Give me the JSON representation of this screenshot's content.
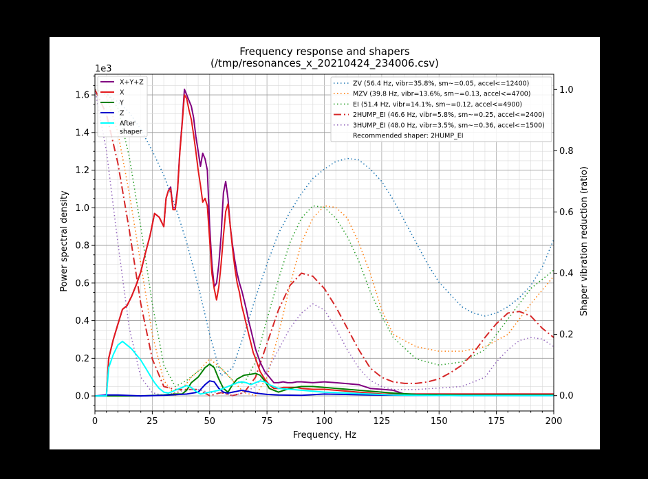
{
  "chart_data": {
    "type": "line",
    "title": "Frequency response and shapers",
    "subtitle": "(/tmp/resonances_x_20210424_234006.csv)",
    "xlabel": "Frequency, Hz",
    "ylabel": "Power spectral density",
    "ylabel_right": "Shaper vibration reduction (ratio)",
    "y_exponent_label": "1e3",
    "xlim": [
      0,
      200
    ],
    "ylim": [
      -80,
      1710
    ],
    "ylim_right": [
      -0.05,
      1.05
    ],
    "x_ticks": [
      0,
      25,
      50,
      75,
      100,
      125,
      150,
      175,
      200
    ],
    "x_tick_labels": [
      "0",
      "25",
      "50",
      "75",
      "100",
      "125",
      "150",
      "175",
      "200"
    ],
    "y_ticks": [
      0,
      200,
      400,
      600,
      800,
      1000,
      1200,
      1400,
      1600
    ],
    "y_tick_labels": [
      "0.0",
      "0.2",
      "0.4",
      "0.6",
      "0.8",
      "1.0",
      "1.2",
      "1.4",
      "1.6"
    ],
    "y_right_ticks": [
      0,
      0.2,
      0.4,
      0.6,
      0.8,
      1.0
    ],
    "y_right_tick_labels": [
      "0.0",
      "0.2",
      "0.4",
      "0.6",
      "0.8",
      "1.0"
    ],
    "grid": true,
    "legend_left_placement": "top-left",
    "legend_right_placement": "top-right",
    "legend_note": "Recommended shaper: 2HUMP_EI",
    "psd_series": [
      {
        "name": "X+Y+Z",
        "color": "#800080",
        "style": "solid",
        "width": 2,
        "x": [
          0,
          5,
          6,
          8,
          10,
          12,
          14,
          16,
          18,
          20,
          22,
          24,
          26,
          28,
          30,
          31,
          32,
          33,
          34,
          35,
          36,
          37,
          38,
          39,
          40,
          41,
          42,
          43,
          44,
          45,
          46,
          47,
          48,
          49,
          50,
          51,
          52,
          53,
          54,
          55,
          56,
          57,
          58,
          59,
          60,
          61,
          62,
          63,
          64,
          65,
          66,
          67,
          68,
          69,
          70,
          72,
          74,
          76,
          78,
          80,
          82,
          84,
          86,
          88,
          90,
          95,
          100,
          105,
          110,
          115,
          120,
          125,
          130,
          135,
          140,
          150,
          160,
          170,
          180,
          190,
          200
        ],
        "y": [
          0,
          0,
          200,
          300,
          380,
          460,
          480,
          530,
          590,
          660,
          760,
          850,
          970,
          950,
          900,
          1050,
          1090,
          1110,
          1000,
          1000,
          1100,
          1300,
          1450,
          1630,
          1600,
          1570,
          1540,
          1480,
          1380,
          1300,
          1220,
          1290,
          1260,
          1200,
          900,
          700,
          580,
          600,
          700,
          850,
          1080,
          1140,
          1050,
          900,
          800,
          720,
          650,
          600,
          560,
          510,
          460,
          400,
          350,
          300,
          250,
          180,
          130,
          100,
          70,
          70,
          75,
          70,
          70,
          75,
          75,
          70,
          75,
          70,
          65,
          60,
          40,
          35,
          30,
          10,
          10,
          10,
          10,
          10,
          10,
          10,
          10
        ]
      },
      {
        "name": "X",
        "color": "#e41a1c",
        "style": "solid",
        "width": 2,
        "x": [
          0,
          5,
          6,
          8,
          10,
          12,
          14,
          16,
          18,
          20,
          22,
          24,
          26,
          28,
          30,
          31,
          32,
          33,
          34,
          35,
          36,
          37,
          38,
          39,
          40,
          41,
          42,
          43,
          44,
          45,
          46,
          47,
          48,
          49,
          50,
          51,
          52,
          53,
          54,
          55,
          56,
          57,
          58,
          59,
          60,
          61,
          62,
          63,
          64,
          65,
          66,
          67,
          68,
          69,
          70,
          72,
          74,
          76,
          78,
          80,
          82,
          84,
          86,
          88,
          90,
          95,
          100,
          105,
          110,
          115,
          120,
          125,
          130,
          135,
          140,
          150,
          160,
          170,
          180,
          190,
          200
        ],
        "y": [
          0,
          0,
          200,
          300,
          380,
          460,
          480,
          530,
          590,
          660,
          760,
          850,
          970,
          950,
          900,
          1050,
          1090,
          1100,
          990,
          990,
          1090,
          1290,
          1440,
          1600,
          1580,
          1520,
          1470,
          1390,
          1300,
          1200,
          1120,
          1030,
          1050,
          1010,
          830,
          650,
          570,
          510,
          580,
          700,
          850,
          980,
          1020,
          900,
          780,
          680,
          600,
          550,
          480,
          430,
          380,
          330,
          280,
          230,
          200,
          130,
          90,
          60,
          40,
          40,
          45,
          45,
          45,
          45,
          40,
          35,
          35,
          30,
          25,
          20,
          15,
          10,
          10,
          10,
          10,
          10,
          10,
          10,
          10,
          10,
          10
        ]
      },
      {
        "name": "Y",
        "color": "#008000",
        "style": "solid",
        "width": 2,
        "x": [
          0,
          5,
          10,
          20,
          30,
          35,
          38,
          40,
          42,
          45,
          48,
          50,
          52,
          54,
          56,
          58,
          60,
          62,
          65,
          68,
          70,
          72,
          74,
          76,
          78,
          80,
          85,
          90,
          95,
          100,
          110,
          120,
          130,
          140,
          160,
          180,
          200
        ],
        "y": [
          0,
          0,
          0,
          0,
          5,
          10,
          10,
          30,
          70,
          100,
          150,
          170,
          150,
          90,
          40,
          20,
          60,
          90,
          110,
          115,
          120,
          110,
          80,
          40,
          30,
          20,
          40,
          50,
          50,
          45,
          35,
          25,
          15,
          8,
          5,
          5,
          5
        ]
      },
      {
        "name": "Z",
        "color": "#0000cd",
        "style": "solid",
        "width": 2,
        "x": [
          0,
          5,
          10,
          20,
          30,
          40,
          45,
          48,
          50,
          52,
          54,
          56,
          58,
          60,
          62,
          64,
          66,
          68,
          70,
          75,
          80,
          90,
          100,
          120,
          140,
          160,
          180,
          200
        ],
        "y": [
          0,
          5,
          5,
          0,
          3,
          10,
          20,
          60,
          80,
          75,
          40,
          20,
          15,
          20,
          25,
          30,
          25,
          20,
          15,
          8,
          5,
          3,
          10,
          5,
          3,
          2,
          2,
          2
        ]
      },
      {
        "name": "After\nshaper",
        "color": "#00ffff",
        "style": "solid",
        "width": 2,
        "x": [
          0,
          5,
          6,
          8,
          10,
          12,
          14,
          16,
          18,
          20,
          22,
          24,
          26,
          28,
          30,
          32,
          34,
          36,
          38,
          40,
          42,
          44,
          46,
          48,
          50,
          52,
          54,
          56,
          58,
          60,
          62,
          64,
          66,
          68,
          70,
          72,
          74,
          76,
          78,
          80,
          85,
          90,
          95,
          100,
          110,
          120,
          130,
          140,
          160,
          180,
          200
        ],
        "y": [
          0,
          0,
          150,
          220,
          270,
          290,
          270,
          250,
          220,
          190,
          150,
          110,
          70,
          40,
          20,
          15,
          25,
          35,
          45,
          55,
          45,
          25,
          10,
          15,
          20,
          25,
          30,
          40,
          50,
          60,
          70,
          75,
          70,
          60,
          70,
          80,
          75,
          60,
          50,
          40,
          35,
          30,
          25,
          20,
          15,
          10,
          5,
          3,
          2,
          2,
          2
        ]
      }
    ],
    "shaper_series": [
      {
        "name": "ZV (56.4 Hz, vibr=35.8%, sm~=0.05, accel<=12400)",
        "color": "#1f77b4",
        "style": "dotted",
        "x": [
          0,
          5,
          10,
          15,
          20,
          25,
          30,
          35,
          40,
          45,
          50,
          55,
          60,
          65,
          70,
          75,
          80,
          85,
          90,
          95,
          100,
          105,
          110,
          115,
          120,
          125,
          130,
          135,
          140,
          145,
          150,
          155,
          160,
          165,
          170,
          175,
          180,
          185,
          190,
          195,
          200
        ],
        "y": [
          1.0,
          0.985,
          0.96,
          0.925,
          0.87,
          0.8,
          0.72,
          0.62,
          0.5,
          0.36,
          0.2,
          0.065,
          0.09,
          0.2,
          0.32,
          0.43,
          0.53,
          0.6,
          0.66,
          0.71,
          0.74,
          0.765,
          0.775,
          0.77,
          0.74,
          0.7,
          0.64,
          0.57,
          0.5,
          0.43,
          0.37,
          0.33,
          0.29,
          0.27,
          0.26,
          0.27,
          0.29,
          0.32,
          0.36,
          0.42,
          0.51
        ]
      },
      {
        "name": "MZV (39.8 Hz, vibr=13.6%, sm~=0.13, accel<=4700)",
        "color": "#ff7f0e",
        "style": "dotted",
        "x": [
          0,
          5,
          10,
          15,
          20,
          25,
          30,
          35,
          40,
          42,
          45,
          50,
          55,
          60,
          65,
          70,
          75,
          80,
          85,
          90,
          95,
          100,
          105,
          110,
          115,
          120,
          125,
          130,
          140,
          150,
          160,
          170,
          180,
          190,
          200
        ],
        "y": [
          1.0,
          0.98,
          0.86,
          0.66,
          0.43,
          0.2,
          0.05,
          0.0,
          0.04,
          0.06,
          0.08,
          0.12,
          0.09,
          0.05,
          0.01,
          0.0,
          0.06,
          0.2,
          0.36,
          0.5,
          0.58,
          0.62,
          0.615,
          0.58,
          0.5,
          0.4,
          0.28,
          0.2,
          0.16,
          0.145,
          0.145,
          0.16,
          0.2,
          0.3,
          0.39
        ]
      },
      {
        "name": "EI (51.4 Hz, vibr=14.1%, sm~=0.12, accel<=4900)",
        "color": "#2ca02c",
        "style": "dotted",
        "x": [
          0,
          5,
          10,
          15,
          20,
          25,
          30,
          35,
          40,
          45,
          50,
          55,
          60,
          65,
          70,
          75,
          80,
          85,
          90,
          95,
          100,
          105,
          110,
          115,
          120,
          125,
          130,
          140,
          150,
          160,
          170,
          180,
          190,
          200
        ],
        "y": [
          1.0,
          0.99,
          0.94,
          0.78,
          0.55,
          0.3,
          0.1,
          0.03,
          0.05,
          0.08,
          0.1,
          0.09,
          0.05,
          0.04,
          0.11,
          0.25,
          0.38,
          0.5,
          0.58,
          0.62,
          0.615,
          0.58,
          0.52,
          0.44,
          0.34,
          0.26,
          0.19,
          0.12,
          0.1,
          0.11,
          0.15,
          0.25,
          0.35,
          0.41
        ]
      },
      {
        "name": "2HUMP_EI (46.6 Hz, vibr=5.8%, sm~=0.25, accel<=2400)",
        "color": "#d62728",
        "style": "dashdot",
        "x": [
          0,
          5,
          10,
          15,
          20,
          25,
          30,
          35,
          40,
          45,
          50,
          55,
          60,
          65,
          70,
          75,
          80,
          85,
          90,
          95,
          100,
          105,
          110,
          115,
          120,
          125,
          130,
          135,
          140,
          145,
          150,
          155,
          160,
          165,
          170,
          175,
          180,
          185,
          190,
          195,
          200
        ],
        "y": [
          1.0,
          0.92,
          0.76,
          0.54,
          0.3,
          0.12,
          0.03,
          0.02,
          0.02,
          0.02,
          0.0,
          0.01,
          0.0,
          0.01,
          0.06,
          0.17,
          0.28,
          0.36,
          0.4,
          0.39,
          0.35,
          0.29,
          0.22,
          0.15,
          0.09,
          0.06,
          0.045,
          0.04,
          0.04,
          0.045,
          0.055,
          0.075,
          0.1,
          0.14,
          0.19,
          0.235,
          0.27,
          0.275,
          0.26,
          0.22,
          0.19
        ]
      },
      {
        "name": "3HUMP_EI (48.0 Hz, vibr=3.5%, sm~=0.36, accel<=1500)",
        "color": "#9467bd",
        "style": "dotted",
        "x": [
          0,
          5,
          10,
          15,
          20,
          25,
          30,
          35,
          40,
          45,
          50,
          55,
          60,
          65,
          70,
          75,
          80,
          85,
          90,
          95,
          100,
          105,
          110,
          115,
          120,
          125,
          130,
          140,
          150,
          160,
          170,
          175,
          180,
          185,
          190,
          195,
          200
        ],
        "y": [
          1.0,
          0.8,
          0.5,
          0.22,
          0.06,
          0.01,
          0.0,
          0.01,
          0.02,
          0.02,
          0.01,
          0.01,
          0.0,
          0.01,
          0.03,
          0.08,
          0.15,
          0.22,
          0.27,
          0.3,
          0.28,
          0.22,
          0.15,
          0.09,
          0.05,
          0.03,
          0.02,
          0.02,
          0.025,
          0.03,
          0.06,
          0.11,
          0.15,
          0.18,
          0.19,
          0.185,
          0.16
        ]
      }
    ]
  }
}
